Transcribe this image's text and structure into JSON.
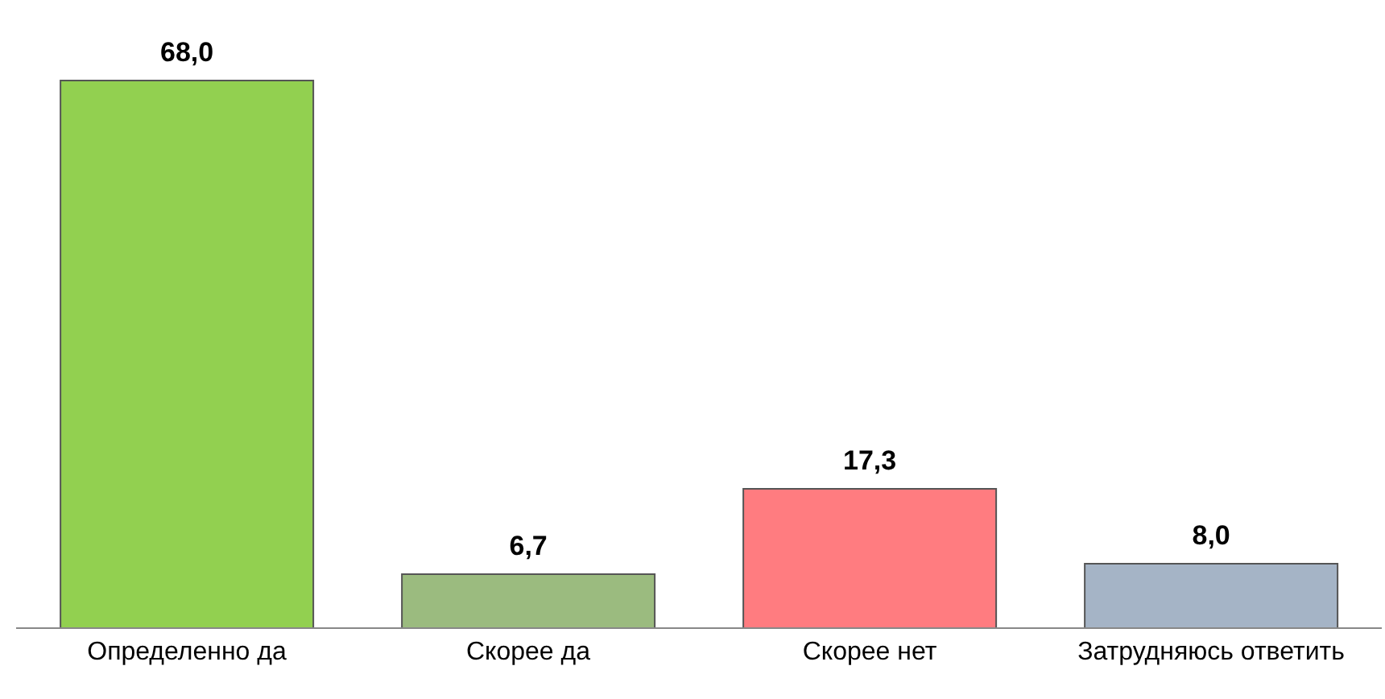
{
  "chart_data": {
    "type": "bar",
    "categories": [
      "Определенно да",
      "Скорее да",
      "Скорее нет",
      "Затрудняюсь ответить"
    ],
    "values": [
      68.0,
      6.7,
      17.3,
      8.0
    ],
    "colors": [
      "#92d050",
      "#9bbb7f",
      "#ff7c80",
      "#a5b4c6"
    ],
    "value_labels": [
      "68,0",
      "6,7",
      "17,3",
      "8,0"
    ],
    "tick_labels": "x"
  }
}
